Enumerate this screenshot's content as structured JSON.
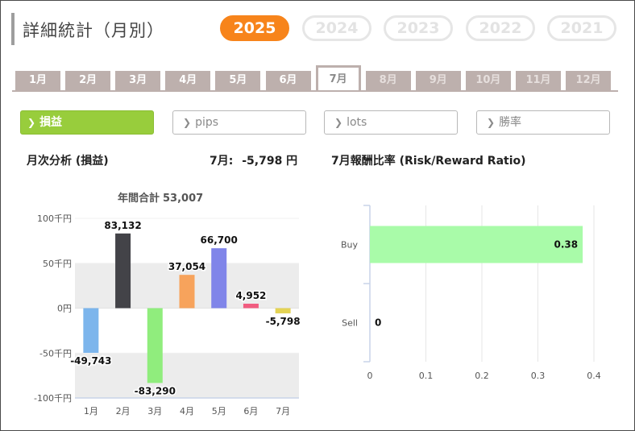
{
  "header": {
    "title": "詳細統計（月別）"
  },
  "years": [
    {
      "label": "2025",
      "active": true
    },
    {
      "label": "2024",
      "active": false
    },
    {
      "label": "2023",
      "active": false
    },
    {
      "label": "2022",
      "active": false
    },
    {
      "label": "2021",
      "active": false
    }
  ],
  "months": [
    {
      "label": "1月",
      "state": "past"
    },
    {
      "label": "2月",
      "state": "past"
    },
    {
      "label": "3月",
      "state": "past"
    },
    {
      "label": "4月",
      "state": "past"
    },
    {
      "label": "5月",
      "state": "past"
    },
    {
      "label": "6月",
      "state": "past"
    },
    {
      "label": "7月",
      "state": "active"
    },
    {
      "label": "8月",
      "state": "future"
    },
    {
      "label": "9月",
      "state": "future"
    },
    {
      "label": "10月",
      "state": "future"
    },
    {
      "label": "11月",
      "state": "future"
    },
    {
      "label": "12月",
      "state": "future"
    }
  ],
  "metrics": [
    {
      "label": "損益",
      "active": true
    },
    {
      "label": "pips",
      "active": false
    },
    {
      "label": "lots",
      "active": false
    },
    {
      "label": "勝率",
      "active": false
    }
  ],
  "left_panel": {
    "title": "月次分析 (損益)",
    "month_label": "7月:",
    "month_value": "-5,798 円",
    "annual_label": "年間合計",
    "annual_value": "53,007"
  },
  "right_panel": {
    "title": "7月報酬比率 (Risk/Reward Ratio)"
  },
  "colors": {
    "accent_orange": "#f7841b",
    "tab_gray": "#bdb0ad",
    "active_green": "#98cd3c",
    "band": "#ececec",
    "rr_bar": "#a9fba9"
  },
  "chart_data": [
    {
      "type": "bar",
      "categories": [
        "1月",
        "2月",
        "3月",
        "4月",
        "5月",
        "6月",
        "7月"
      ],
      "values": [
        -49743,
        83132,
        -83290,
        37054,
        66700,
        4952,
        -5798
      ],
      "data_labels": [
        "-49,743",
        "83,132",
        "-83,290",
        "37,054",
        "66,700",
        "4,952",
        "-5,798"
      ],
      "bar_colors": [
        "#7cb5ec",
        "#434348",
        "#90ed7d",
        "#f7a35c",
        "#8085e9",
        "#f15c80",
        "#e4d354"
      ],
      "ylim": [
        -100000,
        100000
      ],
      "yticks": [
        100000,
        50000,
        0,
        -50000,
        -100000
      ],
      "ytick_labels": [
        "100千円",
        "50千円",
        "0円",
        "-50千円",
        "-100千円"
      ],
      "title": "年間合計 53,007",
      "grid": false
    },
    {
      "type": "bar",
      "orientation": "horizontal",
      "categories": [
        "Buy",
        "Sell"
      ],
      "values": [
        0.38,
        0
      ],
      "data_labels": [
        "0.38",
        "0"
      ],
      "xlim": [
        0,
        0.4
      ],
      "xticks": [
        0,
        0.1,
        0.2,
        0.3,
        0.4
      ],
      "xtick_labels": [
        "0",
        "0.1",
        "0.2",
        "0.3",
        "0.4"
      ],
      "grid": true
    }
  ]
}
